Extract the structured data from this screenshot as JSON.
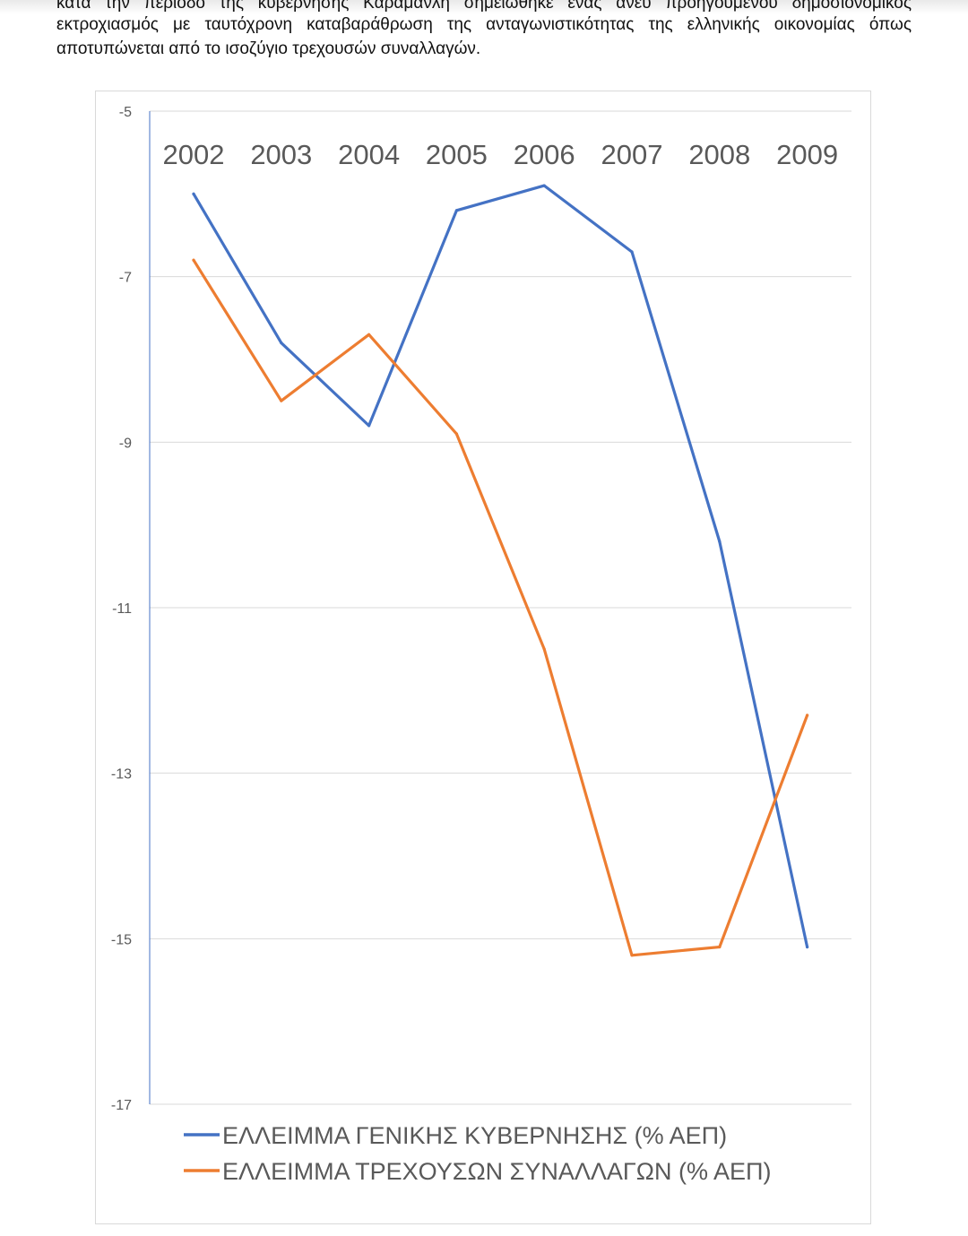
{
  "document": {
    "lines": [
      "κατά την περίοδο της κυβέρνησης Καραμανλή σημειώθηκε ένας άνευ προηγουμένου δημοσιονομικός",
      "εκτροχιασμός με ταυτόχρονη καταβαράθρωση της ανταγωνιστικότητας της ελληνικής οικονομίας όπως",
      "αποτυπώνεται από το ισοζύγιο τρεχουσών συναλλαγών."
    ]
  },
  "chart_data": {
    "type": "line",
    "title": "",
    "xlabel": "",
    "ylabel": "",
    "categories": [
      "2002",
      "2003",
      "2004",
      "2005",
      "2006",
      "2007",
      "2008",
      "2009"
    ],
    "ylim": [
      -17,
      -5
    ],
    "yticks": [
      -5,
      -7,
      -9,
      -11,
      -13,
      -15,
      -17
    ],
    "grid": true,
    "legend_position": "bottom",
    "category_labels_position": "top",
    "series": [
      {
        "name": "ΕΛΛΕΙΜΜΑ ΓΕΝΙΚΗΣ ΚΥΒΕΡΝΗΣΗΣ (% ΑΕΠ)",
        "color": "#4472C4",
        "values": [
          -6.0,
          -7.8,
          -8.8,
          -6.2,
          -5.9,
          -6.7,
          -10.2,
          -15.1
        ]
      },
      {
        "name": "ΕΛΛΕΙΜΜΑ ΤΡΕΧΟΥΣΩΝ ΣΥΝΑΛΛΑΓΩΝ (% ΑΕΠ)",
        "color": "#ED7D31",
        "values": [
          -6.8,
          -8.5,
          -7.7,
          -8.9,
          -11.5,
          -15.2,
          -15.1,
          -12.3
        ]
      }
    ]
  }
}
